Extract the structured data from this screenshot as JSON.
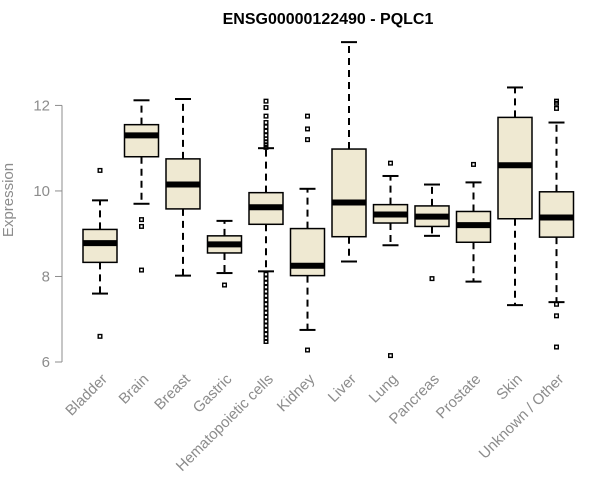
{
  "chart_data": {
    "type": "boxplot",
    "title": "ENSG00000122490 - PQLC1",
    "ylabel": "Expression",
    "xlabel": "",
    "ylim": [
      6,
      13.6
    ],
    "yticks": [
      6,
      8,
      10,
      12
    ],
    "box_color": "#efe9d2",
    "axis_color": "#8c8c8c",
    "categories": [
      "Bladder",
      "Brain",
      "Breast",
      "Gastric",
      "Hematopoietic cells",
      "Kidney",
      "Liver",
      "Lung",
      "Pancreas",
      "Prostate",
      "Skin",
      "Unknown / Other"
    ],
    "boxes": [
      {
        "whisker_low": 7.6,
        "q1": 8.33,
        "median": 8.78,
        "q3": 9.1,
        "whisker_high": 9.78,
        "outliers": [
          10.48,
          6.6
        ]
      },
      {
        "whisker_low": 9.7,
        "q1": 10.8,
        "median": 11.3,
        "q3": 11.55,
        "whisker_high": 12.12,
        "outliers": [
          9.33,
          9.17,
          8.15
        ]
      },
      {
        "whisker_low": 8.02,
        "q1": 9.58,
        "median": 10.15,
        "q3": 10.75,
        "whisker_high": 12.15,
        "outliers": []
      },
      {
        "whisker_low": 8.08,
        "q1": 8.55,
        "median": 8.75,
        "q3": 8.95,
        "whisker_high": 9.3,
        "outliers": [
          7.8
        ]
      },
      {
        "whisker_low": 8.12,
        "q1": 9.22,
        "median": 9.62,
        "q3": 9.96,
        "whisker_high": 11.0,
        "outliers": [
          12.1,
          11.95,
          11.75,
          11.6,
          11.5,
          11.4,
          11.3,
          11.22,
          11.15,
          11.08,
          11.02,
          8.05,
          7.95,
          7.85,
          7.75,
          7.65,
          7.55,
          7.45,
          7.35,
          7.25,
          7.15,
          7.05,
          6.95,
          6.85,
          6.75,
          6.65,
          6.55,
          6.48
        ]
      },
      {
        "whisker_low": 6.75,
        "q1": 8.02,
        "median": 8.25,
        "q3": 9.12,
        "whisker_high": 10.05,
        "outliers": [
          11.75,
          11.45,
          11.2,
          6.28
        ]
      },
      {
        "whisker_low": 8.35,
        "q1": 8.93,
        "median": 9.73,
        "q3": 10.98,
        "whisker_high": 13.48,
        "outliers": []
      },
      {
        "whisker_low": 8.73,
        "q1": 9.25,
        "median": 9.45,
        "q3": 9.68,
        "whisker_high": 10.35,
        "outliers": [
          10.65,
          6.15
        ]
      },
      {
        "whisker_low": 8.95,
        "q1": 9.17,
        "median": 9.4,
        "q3": 9.65,
        "whisker_high": 10.15,
        "outliers": [
          7.95
        ]
      },
      {
        "whisker_low": 7.88,
        "q1": 8.8,
        "median": 9.2,
        "q3": 9.52,
        "whisker_high": 10.2,
        "outliers": [
          10.62
        ]
      },
      {
        "whisker_low": 7.33,
        "q1": 9.35,
        "median": 10.6,
        "q3": 11.72,
        "whisker_high": 12.42,
        "outliers": []
      },
      {
        "whisker_low": 7.4,
        "q1": 8.92,
        "median": 9.38,
        "q3": 9.98,
        "whisker_high": 11.6,
        "outliers": [
          12.1,
          12.05,
          11.93,
          7.35,
          7.08,
          6.35
        ]
      }
    ]
  }
}
